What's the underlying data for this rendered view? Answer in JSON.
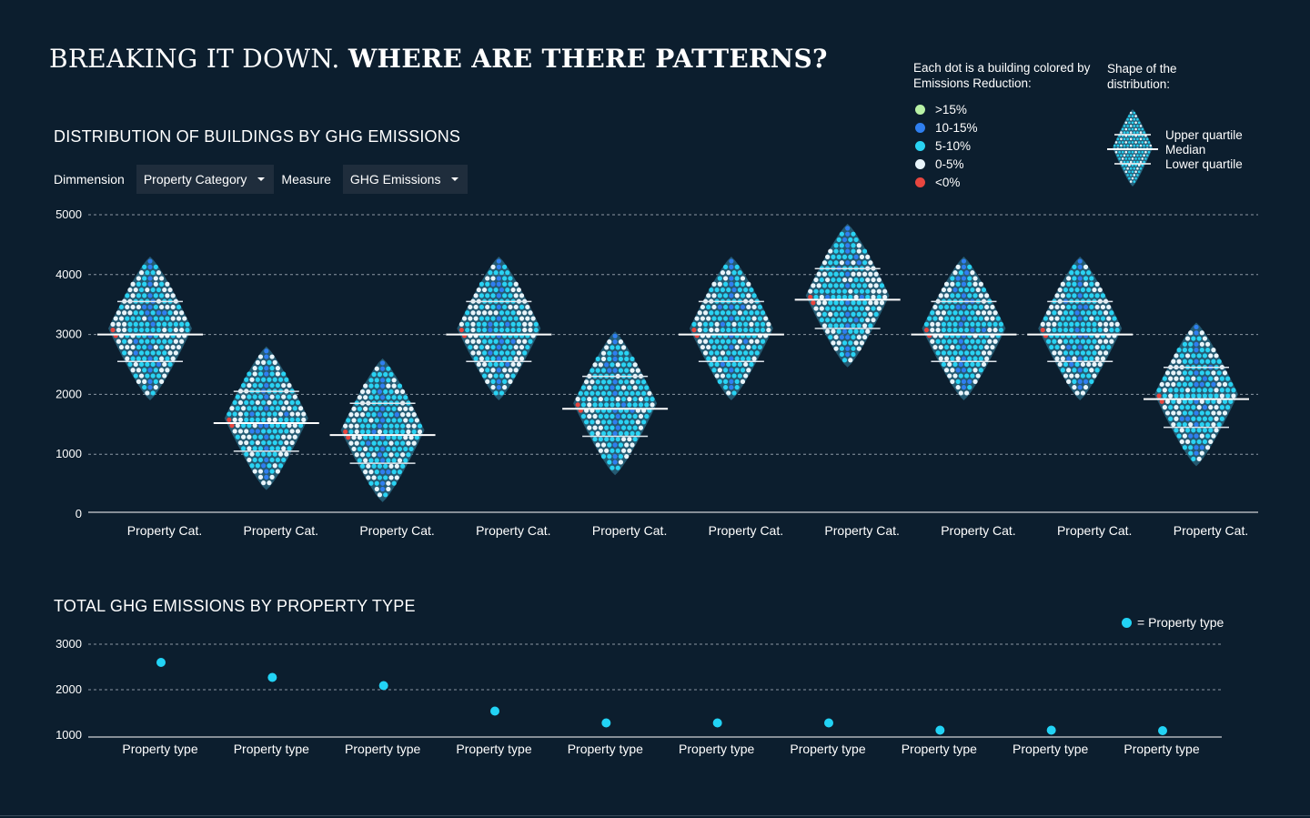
{
  "header": {
    "title_light": "BREAKING IT DOWN.",
    "title_bold": "WHERE ARE THERE PATTERNS?"
  },
  "legend": {
    "title": "Each dot is a building colored by Emissions Reduction:",
    "items": [
      {
        "label": ">15%",
        "color": "#b9f2a6"
      },
      {
        "label": "10-15%",
        "color": "#2f7ff0"
      },
      {
        "label": "5-10%",
        "color": "#29d3f3"
      },
      {
        "label": "0-5%",
        "color": "#e8f4fa"
      },
      {
        "label": "<0%",
        "color": "#e8463f"
      }
    ],
    "shape_title": "Shape of the distribution:",
    "shape_labels": {
      "upper": "Upper quartile",
      "median": "Median",
      "lower": "Lower quartile"
    }
  },
  "distribution": {
    "title": "DISTRIBUTION OF BUILDINGS BY GHG EMISSIONS",
    "controls": {
      "dimension_label": "Dimmension",
      "dimension_value": "Property Category",
      "measure_label": "Measure",
      "measure_value": "GHG Emissions"
    }
  },
  "chart_data": [
    {
      "type": "violin-beeswarm",
      "title": "DISTRIBUTION OF BUILDINGS BY GHG EMISSIONS",
      "ylim": [
        0,
        5000
      ],
      "yticks": [
        0,
        1000,
        2000,
        3000,
        4000,
        5000
      ],
      "grid": true,
      "categories": [
        "Property Cat.",
        "Property Cat.",
        "Property Cat.",
        "Property Cat.",
        "Property Cat.",
        "Property Cat.",
        "Property Cat.",
        "Property Cat.",
        "Property Cat.",
        "Property Cat."
      ],
      "series": [
        {
          "median": 3000,
          "upper_quartile": 3550,
          "lower_quartile": 2550,
          "max": 4300,
          "min": 1900
        },
        {
          "median": 1520,
          "upper_quartile": 2050,
          "lower_quartile": 1050,
          "max": 2800,
          "min": 400
        },
        {
          "median": 1320,
          "upper_quartile": 1850,
          "lower_quartile": 850,
          "max": 2600,
          "min": 200
        },
        {
          "median": 3000,
          "upper_quartile": 3550,
          "lower_quartile": 2550,
          "max": 4300,
          "min": 1900
        },
        {
          "median": 1760,
          "upper_quartile": 2300,
          "lower_quartile": 1300,
          "max": 3050,
          "min": 650
        },
        {
          "median": 3000,
          "upper_quartile": 3550,
          "lower_quartile": 2550,
          "max": 4300,
          "min": 1900
        },
        {
          "median": 3580,
          "upper_quartile": 4100,
          "lower_quartile": 3100,
          "max": 4850,
          "min": 2450
        },
        {
          "median": 3000,
          "upper_quartile": 3550,
          "lower_quartile": 2550,
          "max": 4300,
          "min": 1900
        },
        {
          "median": 3000,
          "upper_quartile": 3550,
          "lower_quartile": 2550,
          "max": 4300,
          "min": 1900
        },
        {
          "median": 1920,
          "upper_quartile": 2450,
          "lower_quartile": 1450,
          "max": 3200,
          "min": 800
        }
      ]
    },
    {
      "type": "scatter",
      "title": "TOTAL GHG EMISSIONS BY PROPERTY TYPE",
      "ylim": [
        1000,
        3000
      ],
      "yticks": [
        1000,
        2000,
        3000
      ],
      "grid": true,
      "categories": [
        "Property type",
        "Property type",
        "Property type",
        "Property type",
        "Property type",
        "Property type",
        "Property type",
        "Property type",
        "Property type",
        "Property type"
      ],
      "values": [
        2600,
        2270,
        2090,
        1530,
        1270,
        1270,
        1270,
        1110,
        1110,
        1100
      ],
      "legend": "= Property type"
    }
  ],
  "totals": {
    "title": "TOTAL GHG EMISSIONS BY PROPERTY TYPE",
    "legend_label": "= Property type"
  }
}
